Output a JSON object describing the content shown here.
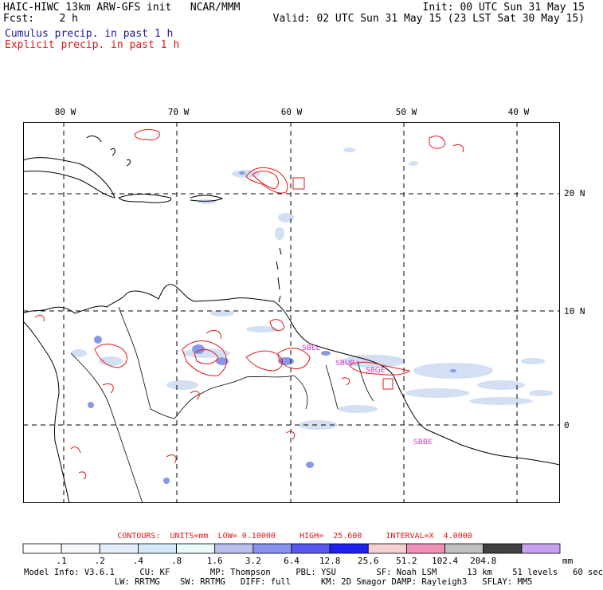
{
  "header": {
    "title": "HAIC-HIWC 13km ARW-GFS init",
    "center": "NCAR/MMM",
    "init": "Init: 00 UTC Sun 31 May 15",
    "fcst_label": "Fcst:",
    "fcst_value": "2 h",
    "valid": "Valid: 02 UTC Sun 31 May 15 (23 LST Sat 30 May 15)"
  },
  "legend": {
    "cumulus": "Cumulus precip. in past 1 h",
    "explicit": "Explicit precip. in past 1 h"
  },
  "map": {
    "longitudes": [
      {
        "label": "80 W",
        "value": -80
      },
      {
        "label": "70 W",
        "value": -70
      },
      {
        "label": "60 W",
        "value": -60
      },
      {
        "label": "50 W",
        "value": -50
      },
      {
        "label": "40 W",
        "value": -40
      }
    ],
    "latitudes": [
      {
        "label": "20 N",
        "value": 20
      },
      {
        "label": "10 N",
        "value": 10
      },
      {
        "label": "0",
        "value": 0
      }
    ],
    "station_labels": [
      "SBEL",
      "SBUP",
      "SBGE",
      "SBBE"
    ],
    "colors": {
      "coast": "#000000",
      "explicit_contour": "#e01818",
      "cumulus_light": "#c8d8f0",
      "cumulus_mid": "#8898e8",
      "station": "#cc33cc",
      "grid": "#000000"
    }
  },
  "contours": {
    "label": "CONTOURS:  UNITS=mm  LOW= 0.10000     HIGH=  25.600     INTERVAL=X  4.0000"
  },
  "colorbar": {
    "unit": "mm",
    "labels": [
      ".1",
      ".2",
      ".4",
      ".8",
      "1.6",
      "3.2",
      "6.4",
      "12.8",
      "25.6",
      "51.2",
      "102.4",
      "204.8"
    ],
    "colors": [
      "#ffffff",
      "#f4f8fc",
      "#e4eefa",
      "#d4e8f8",
      "#e8fafa",
      "#b8c0f0",
      "#8890f0",
      "#5858f0",
      "#2020f0",
      "#f4d0d0",
      "#f090b8",
      "#c0c0c0",
      "#404040",
      "#c8a0f0"
    ]
  },
  "model_info": {
    "line1": "Model Info: V3.6.1     CU: KF        MP: Thompson     PBL: YSU        SF: Noah LSM      13 km    51 levels   60 sec",
    "line2": "                  LW: RRTMG    SW: RRTMG   DIFF: full      KM: 2D Smagor DAMP: Rayleigh3   SFLAY: MM5"
  }
}
